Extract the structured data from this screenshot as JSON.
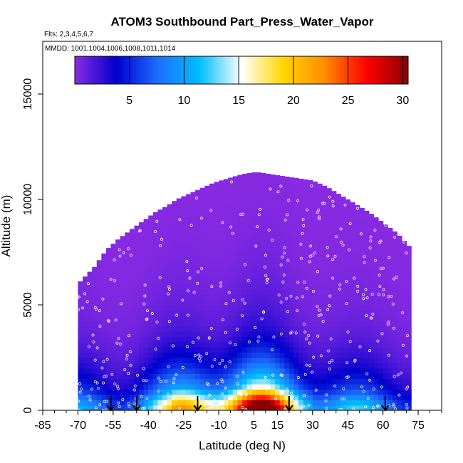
{
  "chart_data": {
    "type": "heatmap",
    "title": "ATOM3 Southbound Part_Press_Water_Vapor",
    "subtitle_flights": "Flts: 2,3,4,5,6,7",
    "subtitle_dates": "MMDD: 1001,1004,1006,1008,1011,1014",
    "xlabel": "Latitude (deg N)",
    "ylabel": "Altitude (m)",
    "xlim": [
      -85,
      85
    ],
    "ylim": [
      0,
      17500
    ],
    "x_ticks": [
      -85,
      -70,
      -55,
      -40,
      -25,
      -10,
      5,
      15,
      30,
      45,
      60,
      75
    ],
    "x_tick_labels": [
      "-85",
      "-70",
      "-55",
      "-40",
      "-25",
      "-10",
      "5",
      "15",
      "30",
      "45",
      "60",
      "75"
    ],
    "y_ticks": [
      0,
      5000,
      10000,
      15000
    ],
    "y_tick_labels": [
      "0",
      "5000",
      "10000",
      "15000"
    ],
    "colorbar": {
      "min": 0,
      "max": 30.5,
      "ticks": [
        5,
        10,
        15,
        20,
        25,
        30
      ],
      "tick_labels": [
        "5",
        "10",
        "15",
        "20",
        "25",
        "30"
      ],
      "colors": [
        "#8a2be2",
        "#0000cd",
        "#1e6fff",
        "#00bfff",
        "#ffffff",
        "#ffd700",
        "#ff8c00",
        "#ff0000",
        "#8b0000"
      ]
    },
    "data_extent": {
      "lat": [
        -70,
        -63,
        -58,
        -53,
        -47,
        -42,
        -37,
        -32,
        -28,
        -24,
        -18,
        -12,
        -6,
        0,
        6,
        12,
        18,
        24,
        30,
        36,
        42,
        48,
        54,
        60,
        66,
        71
      ],
      "max_altitude": [
        6000,
        6800,
        7600,
        8100,
        8600,
        9000,
        9400,
        9700,
        10000,
        10200,
        10500,
        10800,
        11000,
        11200,
        11300,
        11200,
        11100,
        11000,
        10900,
        10600,
        10200,
        9800,
        9400,
        8900,
        8400,
        7800
      ]
    },
    "profile_altitudes": [
      0,
      250,
      500,
      750,
      1000,
      1500,
      2000,
      2500,
      3000,
      3500,
      4000,
      5000,
      6000,
      7000,
      8000,
      9000,
      10000,
      11000
    ],
    "profile_values": [
      24,
      22,
      19,
      15,
      12,
      9,
      6.5,
      4.8,
      3.6,
      2.6,
      1.9,
      1.2,
      0.8,
      0.5,
      0.35,
      0.25,
      0.15,
      0.1
    ],
    "flight_marker_latitudes": [
      -56,
      -45,
      -19,
      20,
      61
    ]
  }
}
